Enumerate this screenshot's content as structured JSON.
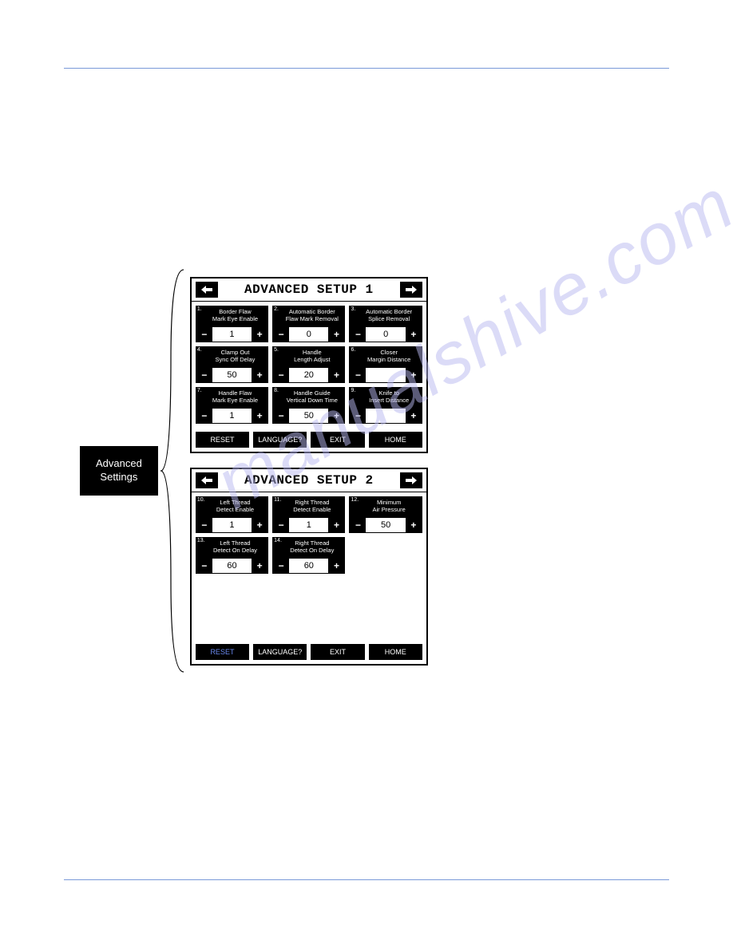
{
  "colors": {
    "rule": "#7a99d8",
    "panel_bg": "#ffffff",
    "panel_fg": "#000000",
    "button_blue_text": "#6a8af0",
    "watermark": "#b8b8f0"
  },
  "watermark_text": "manualshive.com",
  "label": {
    "line1": "Advanced",
    "line2": "Settings"
  },
  "panel1": {
    "title": "ADVANCED SETUP 1",
    "params": [
      {
        "num": "1.",
        "label": "Border Flaw\nMark Eye Enable",
        "value": "1"
      },
      {
        "num": "2.",
        "label": "Automatic Border\nFlaw Mark Removal",
        "value": "0"
      },
      {
        "num": "3.",
        "label": "Automatic Border\nSplice Removal",
        "value": "0"
      },
      {
        "num": "4.",
        "label": "Clamp Out\nSync Off Delay",
        "value": "50"
      },
      {
        "num": "5.",
        "label": "Handle\nLength Adjust",
        "value": "20"
      },
      {
        "num": "6.",
        "label": "Closer\nMargin Distance",
        "value": ""
      },
      {
        "num": "7.",
        "label": "Handle Flaw\nMark Eye Enable",
        "value": "1"
      },
      {
        "num": "8.",
        "label": "Handle Guide\nVertical Down Time",
        "value": "50"
      },
      {
        "num": "9.",
        "label": "Knife to\nInsert Distance",
        "value": ""
      }
    ],
    "footer": [
      "RESET",
      "LANGUAGE?",
      "EXIT",
      "HOME"
    ]
  },
  "panel2": {
    "title": "ADVANCED SETUP 2",
    "params": [
      {
        "num": "10.",
        "label": "Left Thread\nDetect Enable",
        "value": "1"
      },
      {
        "num": "11.",
        "label": "Right Thread\nDetect Enable",
        "value": "1"
      },
      {
        "num": "12.",
        "label": "Minimum\nAir Pressure",
        "value": "50"
      },
      {
        "num": "13.",
        "label": "Left Thread\nDetect On Delay",
        "value": "60"
      },
      {
        "num": "14.",
        "label": "Right Thread\nDetect On Delay",
        "value": "60"
      }
    ],
    "footer": [
      "RESET",
      "LANGUAGE?",
      "EXIT",
      "HOME"
    ]
  },
  "glyphs": {
    "minus": "−",
    "plus": "+",
    "left": "◀",
    "right": "▶"
  }
}
